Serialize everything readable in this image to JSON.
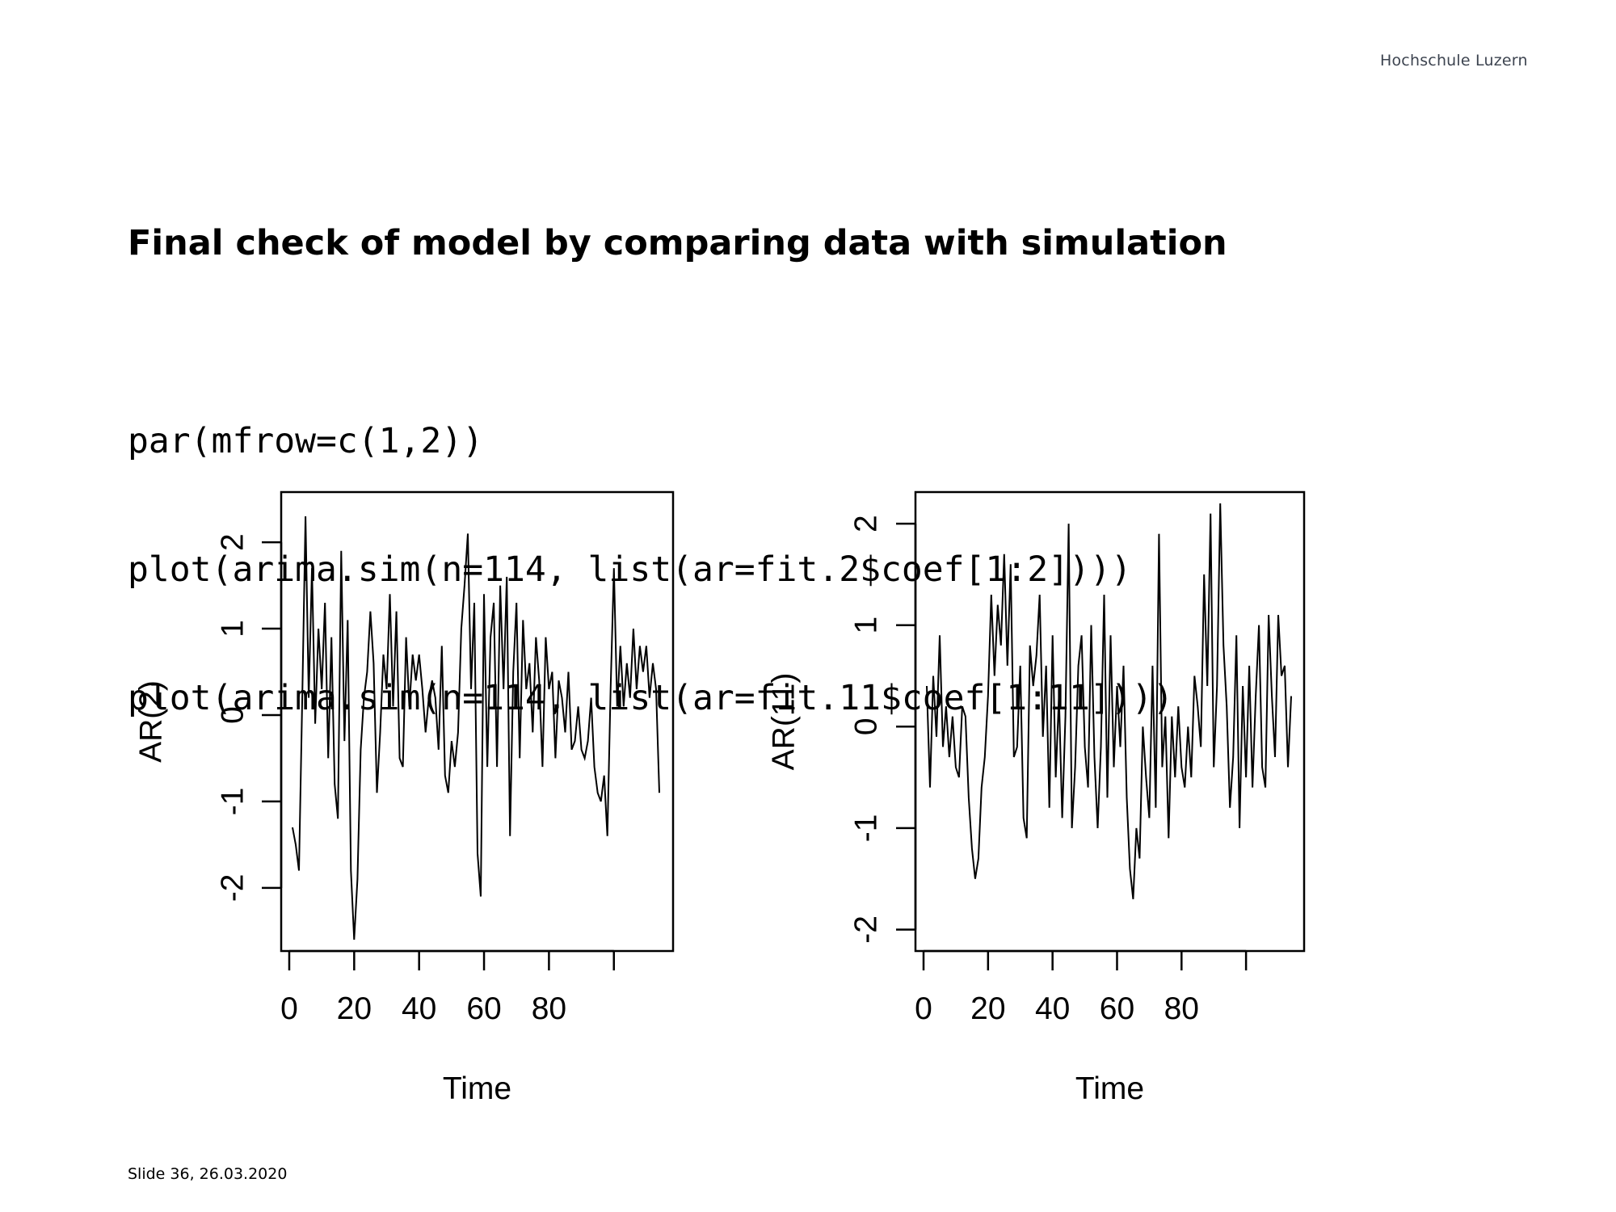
{
  "header": {
    "brand": "Hochschule Luzern"
  },
  "slide": {
    "title": "Final check of model by comparing data with simulation",
    "code_lines": [
      "par(mfrow=c(1,2))",
      "plot(arima.sim(n=114, list(ar=fit.2$coef[1:2])))",
      "plot(arima.sim(n=114, list(ar=fit.11$coef[1:11])))"
    ]
  },
  "footer": {
    "text": "Slide  36, 26.03.2020"
  },
  "chart_data": [
    {
      "type": "line",
      "xlabel": "Time",
      "ylabel": "AR(2)",
      "xlim": [
        1,
        114
      ],
      "ylim": [
        -2.6,
        2.45
      ],
      "x_ticks": [
        0,
        20,
        40,
        60,
        80,
        100
      ],
      "x_tick_labels": [
        "0",
        "20",
        "40",
        "60",
        "80",
        ""
      ],
      "y_ticks": [
        -2,
        -1,
        0,
        1,
        2
      ],
      "y_tick_labels": [
        "-2",
        "-1",
        "0",
        "1",
        "2"
      ],
      "grid": false,
      "line_color": "#000000",
      "series": [
        {
          "x_start": 1,
          "values": [
            -1.3,
            -1.5,
            -1.8,
            0.2,
            2.3,
            0.2,
            1.7,
            -0.1,
            1.0,
            0.3,
            1.3,
            -0.5,
            0.9,
            -0.8,
            -1.2,
            1.9,
            -0.3,
            1.1,
            -1.8,
            -2.6,
            -1.9,
            -0.4,
            0.2,
            0.5,
            1.2,
            0.6,
            -0.9,
            -0.2,
            0.7,
            0.3,
            1.4,
            0.1,
            1.2,
            -0.5,
            -0.6,
            0.9,
            0.1,
            0.7,
            0.4,
            0.7,
            0.3,
            -0.2,
            0.2,
            0.4,
            0.2,
            -0.4,
            0.8,
            -0.7,
            -0.9,
            -0.3,
            -0.6,
            -0.2,
            1.0,
            1.5,
            2.1,
            0.3,
            1.3,
            -1.6,
            -2.1,
            1.4,
            -0.6,
            0.9,
            1.3,
            -0.6,
            1.5,
            0.3,
            1.6,
            -1.4,
            0.5,
            1.3,
            -0.5,
            1.1,
            0.3,
            0.6,
            -0.2,
            0.9,
            0.4,
            -0.6,
            0.9,
            0.3,
            0.5,
            -0.5,
            0.4,
            0.2,
            -0.2,
            0.5,
            -0.4,
            -0.3,
            0.1,
            -0.4,
            -0.5,
            -0.3,
            0.2,
            -0.6,
            -0.9,
            -1.0,
            -0.7,
            -1.4,
            0.3,
            1.7,
            0.1,
            0.8,
            0.1,
            0.6,
            0.2,
            1.0,
            0.3,
            0.8,
            0.5,
            0.8,
            0.2,
            0.6,
            0.3,
            -0.9
          ]
        }
      ]
    },
    {
      "type": "line",
      "xlabel": "Time",
      "ylabel": "AR(11)",
      "xlim": [
        1,
        114
      ],
      "ylim": [
        -2.1,
        2.2
      ],
      "x_ticks": [
        0,
        20,
        40,
        60,
        80,
        100
      ],
      "x_tick_labels": [
        "0",
        "20",
        "40",
        "60",
        "80",
        ""
      ],
      "y_ticks": [
        -2,
        -1,
        0,
        1,
        2
      ],
      "y_tick_labels": [
        "-2",
        "-1",
        "0",
        "1",
        "2"
      ],
      "grid": false,
      "line_color": "#000000",
      "series": [
        {
          "x_start": 1,
          "values": [
            0.4,
            -0.6,
            0.5,
            -0.1,
            0.9,
            -0.2,
            0.2,
            -0.3,
            0.1,
            -0.4,
            -0.5,
            0.2,
            0.1,
            -0.7,
            -1.2,
            -1.5,
            -1.3,
            -0.6,
            -0.3,
            0.3,
            1.3,
            0.5,
            1.2,
            0.8,
            1.7,
            0.6,
            1.6,
            -0.3,
            -0.2,
            0.6,
            -0.9,
            -1.1,
            0.8,
            0.4,
            0.7,
            1.3,
            -0.1,
            0.6,
            -0.8,
            0.9,
            -0.5,
            0.3,
            -0.9,
            0.1,
            2.0,
            -1.0,
            -0.4,
            0.6,
            0.9,
            -0.2,
            -0.6,
            1.0,
            -0.3,
            -1.0,
            -0.2,
            1.3,
            -0.7,
            0.9,
            -0.4,
            0.4,
            -0.2,
            0.6,
            -0.7,
            -1.4,
            -1.7,
            -1.0,
            -1.3,
            0.0,
            -0.5,
            -0.9,
            0.6,
            -0.8,
            1.9,
            -0.4,
            0.1,
            -1.1,
            0.1,
            -0.5,
            0.2,
            -0.4,
            -0.6,
            0.0,
            -0.5,
            0.5,
            0.2,
            -0.2,
            1.5,
            0.4,
            2.1,
            -0.4,
            0.4,
            2.2,
            0.8,
            0.2,
            -0.8,
            -0.3,
            0.9,
            -1.0,
            0.4,
            -0.5,
            0.6,
            -0.6,
            0.3,
            1.0,
            -0.4,
            -0.6,
            1.1,
            0.3,
            -0.3,
            1.1,
            0.5,
            0.6,
            -0.4,
            0.3
          ]
        }
      ]
    }
  ]
}
